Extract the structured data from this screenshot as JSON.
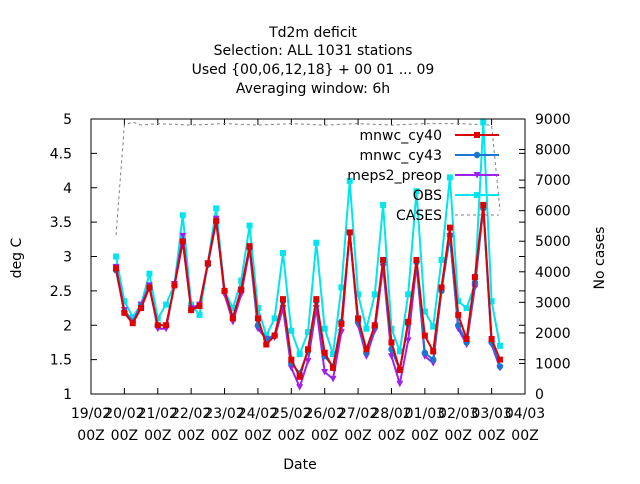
{
  "chart_data": {
    "type": "line",
    "title_lines": [
      "Td2m deficit",
      "Selection: ALL    1031 stations",
      "Used {00,06,12,18} + 00 01 ... 09",
      "Averaging window:  6h"
    ],
    "xlabel": "Date",
    "ylabel": "deg C",
    "y2label": "No cases",
    "ylim": [
      1,
      5
    ],
    "y2lim": [
      0,
      9000
    ],
    "xlim": [
      "2022-02-19T00",
      "2022-03-04T00"
    ],
    "grid": false,
    "legend_position": "top-right",
    "x_tick_labels": [
      [
        "19/02",
        "00Z"
      ],
      [
        "20/02",
        "00Z"
      ],
      [
        "21/02",
        "00Z"
      ],
      [
        "22/02",
        "00Z"
      ],
      [
        "23/02",
        "00Z"
      ],
      [
        "24/02",
        "00Z"
      ],
      [
        "25/02",
        "00Z"
      ],
      [
        "26/02",
        "00Z"
      ],
      [
        "27/02",
        "00Z"
      ],
      [
        "28/02",
        "00Z"
      ],
      [
        "01/03",
        "00Z"
      ],
      [
        "02/03",
        "00Z"
      ],
      [
        "03/03",
        "00Z"
      ],
      [
        "04/03",
        "00Z"
      ]
    ],
    "y_tick_labels": [
      "1",
      "1.5",
      "2",
      "2.5",
      "3",
      "3.5",
      "4",
      "4.5",
      "5"
    ],
    "y2_tick_labels": [
      "0",
      "1000",
      "2000",
      "3000",
      "4000",
      "5000",
      "6000",
      "7000",
      "8000",
      "9000"
    ],
    "x": [
      "2022-02-19T18",
      "2022-02-20T00",
      "2022-02-20T06",
      "2022-02-20T12",
      "2022-02-20T18",
      "2022-02-21T00",
      "2022-02-21T06",
      "2022-02-21T12",
      "2022-02-21T18",
      "2022-02-22T00",
      "2022-02-22T06",
      "2022-02-22T12",
      "2022-02-22T18",
      "2022-02-23T00",
      "2022-02-23T06",
      "2022-02-23T12",
      "2022-02-23T18",
      "2022-02-24T00",
      "2022-02-24T06",
      "2022-02-24T12",
      "2022-02-24T18",
      "2022-02-25T00",
      "2022-02-25T06",
      "2022-02-25T12",
      "2022-02-25T18",
      "2022-02-26T00",
      "2022-02-26T06",
      "2022-02-26T12",
      "2022-02-26T18",
      "2022-02-27T00",
      "2022-02-27T06",
      "2022-02-27T12",
      "2022-02-27T18",
      "2022-02-28T00",
      "2022-02-28T06",
      "2022-02-28T12",
      "2022-02-28T18",
      "2022-03-01T00",
      "2022-03-01T06",
      "2022-03-01T12",
      "2022-03-01T18",
      "2022-03-02T00",
      "2022-03-02T06",
      "2022-03-02T12",
      "2022-03-02T18",
      "2022-03-03T00",
      "2022-03-03T06",
      "2022-03-03T12"
    ],
    "series": [
      {
        "name": "mnwc_cy40",
        "color": "#e00000",
        "marker": "square",
        "axis": "y",
        "values": [
          2.83,
          2.18,
          2.03,
          2.25,
          2.55,
          2.0,
          2.0,
          2.58,
          3.22,
          2.22,
          2.28,
          2.9,
          3.52,
          2.5,
          2.1,
          2.52,
          3.15,
          2.1,
          1.72,
          1.85,
          2.38,
          1.5,
          1.25,
          1.65,
          2.38,
          1.6,
          1.38,
          2.02,
          3.35,
          2.1,
          1.65,
          2.0,
          2.95,
          1.75,
          1.35,
          2.05,
          2.95,
          1.85,
          1.62,
          2.55,
          3.42,
          2.15,
          1.8,
          2.7,
          3.75,
          1.8,
          1.5,
          null
        ]
      },
      {
        "name": "mnwc_cy43",
        "color": "#1a76d2",
        "marker": "circle",
        "axis": "y",
        "values": [
          2.8,
          2.2,
          2.05,
          2.28,
          2.55,
          2.0,
          2.0,
          2.58,
          3.22,
          2.22,
          2.28,
          2.88,
          3.5,
          2.5,
          2.12,
          2.52,
          3.12,
          2.0,
          1.8,
          1.85,
          2.35,
          1.45,
          1.3,
          1.62,
          2.35,
          1.55,
          1.4,
          2.05,
          3.35,
          2.05,
          1.6,
          1.98,
          2.92,
          1.65,
          1.35,
          2.02,
          2.92,
          1.6,
          1.5,
          2.5,
          3.3,
          2.0,
          1.75,
          2.62,
          3.7,
          1.75,
          1.4,
          null
        ]
      },
      {
        "name": "meps2_preop",
        "color": "#a020f0",
        "marker": "triangle",
        "axis": "y",
        "values": [
          2.85,
          2.22,
          2.05,
          2.3,
          2.58,
          1.95,
          1.95,
          2.6,
          3.3,
          2.25,
          2.3,
          2.9,
          3.55,
          2.45,
          2.05,
          2.45,
          3.1,
          1.95,
          1.8,
          1.82,
          2.25,
          1.38,
          1.1,
          1.48,
          2.25,
          1.32,
          1.22,
          1.9,
          3.35,
          2.0,
          1.55,
          1.92,
          2.85,
          1.55,
          1.15,
          1.78,
          2.88,
          1.55,
          1.45,
          2.52,
          3.3,
          1.95,
          1.72,
          2.55,
          3.72,
          1.72,
          1.38,
          null
        ]
      },
      {
        "name": "OBS",
        "color": "#00e5ee",
        "marker": "square",
        "axis": "y",
        "values": [
          3.0,
          2.35,
          2.12,
          2.3,
          2.75,
          2.1,
          2.3,
          2.6,
          3.6,
          2.3,
          2.15,
          2.9,
          3.7,
          2.5,
          2.25,
          2.65,
          3.45,
          2.25,
          1.85,
          2.1,
          3.05,
          1.92,
          1.58,
          1.9,
          3.2,
          1.95,
          1.58,
          2.55,
          4.1,
          2.45,
          1.95,
          2.45,
          3.75,
          1.95,
          1.62,
          2.45,
          3.95,
          2.2,
          1.98,
          2.95,
          4.15,
          2.35,
          2.25,
          2.6,
          4.95,
          2.35,
          1.7,
          null
        ]
      },
      {
        "name": "CASES",
        "color": "#808080",
        "marker": "none",
        "axis": "y2",
        "line_style": "dashed",
        "x": [
          "2022-02-19T18",
          "2022-02-19T20",
          "2022-02-20T00",
          "2022-02-20T06",
          "2022-02-20T12",
          "2022-02-21T00",
          "2022-02-22T00",
          "2022-02-23T00",
          "2022-02-24T00",
          "2022-02-25T00",
          "2022-02-26T00",
          "2022-02-27T00",
          "2022-02-28T00",
          "2022-03-01T00",
          "2022-03-02T00",
          "2022-03-03T00",
          "2022-03-03T06"
        ],
        "values": [
          5200,
          6400,
          8800,
          8900,
          8800,
          8850,
          8800,
          8850,
          8800,
          8850,
          8800,
          8850,
          8800,
          8850,
          8850,
          8800,
          6000
        ]
      }
    ]
  }
}
